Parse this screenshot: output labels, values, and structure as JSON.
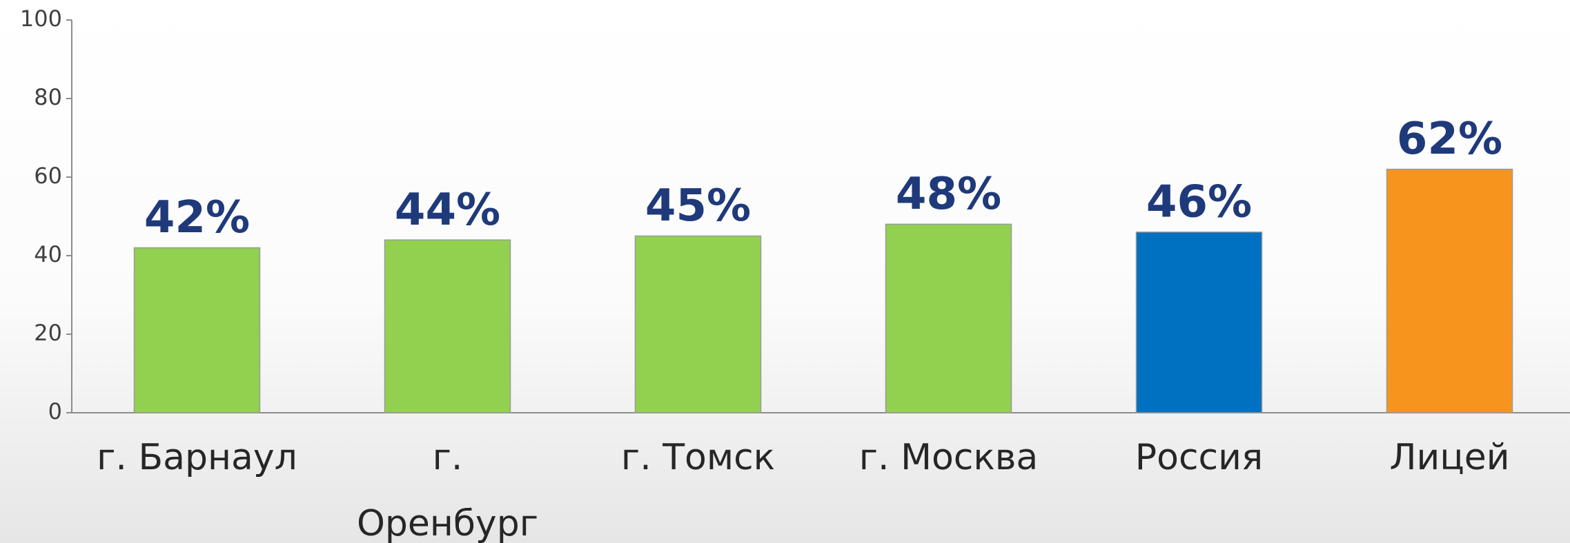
{
  "chart_data": {
    "type": "bar",
    "categories": [
      "г. Барнаул",
      "г. Оренбург",
      "г. Томск",
      "г. Москва",
      "Россия",
      "Лицей"
    ],
    "values": [
      42,
      44,
      45,
      48,
      46,
      62
    ],
    "value_labels": [
      "42%",
      "44%",
      "45%",
      "48%",
      "46%",
      "62%"
    ],
    "colors": [
      "#92d050",
      "#92d050",
      "#92d050",
      "#92d050",
      "#0070c0",
      "#f7941d"
    ],
    "ylim": [
      0,
      100
    ],
    "yticks": [
      0,
      20,
      40,
      60,
      80,
      100
    ],
    "grid": false
  }
}
